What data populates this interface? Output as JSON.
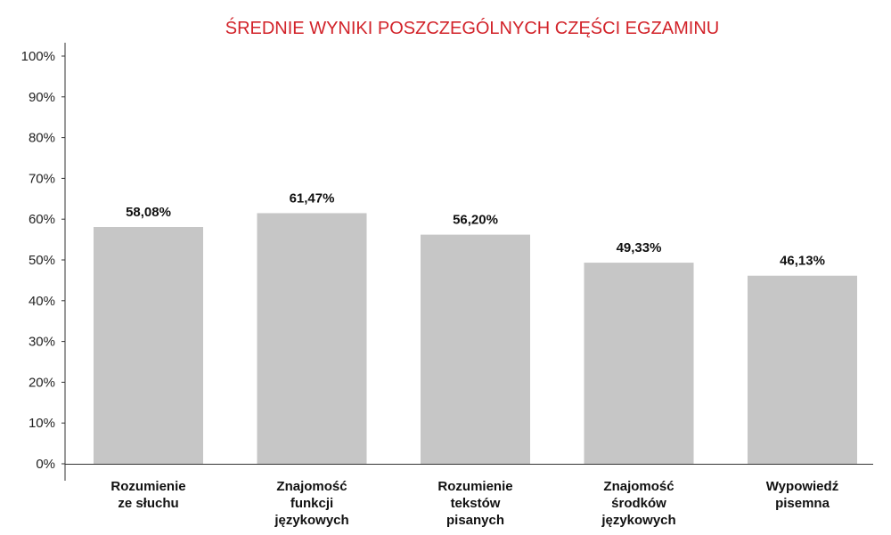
{
  "chart_data": {
    "type": "bar",
    "title": "ŚREDNIE WYNIKI POSZCZEGÓLNYCH CZĘŚCI EGZAMINU",
    "categories": [
      [
        "Rozumienie",
        "ze słuchu"
      ],
      [
        "Znajomość",
        "funkcji",
        "językowych"
      ],
      [
        "Rozumienie",
        "tekstów",
        "pisanych"
      ],
      [
        "Znajomość",
        "środków",
        "językowych"
      ],
      [
        "Wypowiedź",
        "pisemna"
      ]
    ],
    "values": [
      58.08,
      61.47,
      56.2,
      49.33,
      46.13
    ],
    "value_labels": [
      "58,08%",
      "61,47%",
      "56,20%",
      "49,33%",
      "46,13%"
    ],
    "ylim": [
      0,
      100
    ],
    "yticks": [
      0,
      10,
      20,
      30,
      40,
      50,
      60,
      70,
      80,
      90,
      100
    ],
    "ytick_labels": [
      "0%",
      "10%",
      "20%",
      "30%",
      "40%",
      "50%",
      "60%",
      "70%",
      "80%",
      "90%",
      "100%"
    ],
    "grid": false,
    "legend": "none",
    "colors": {
      "bar": "#c6c6c6",
      "title": "#d2232a",
      "axis": "#333333"
    }
  }
}
